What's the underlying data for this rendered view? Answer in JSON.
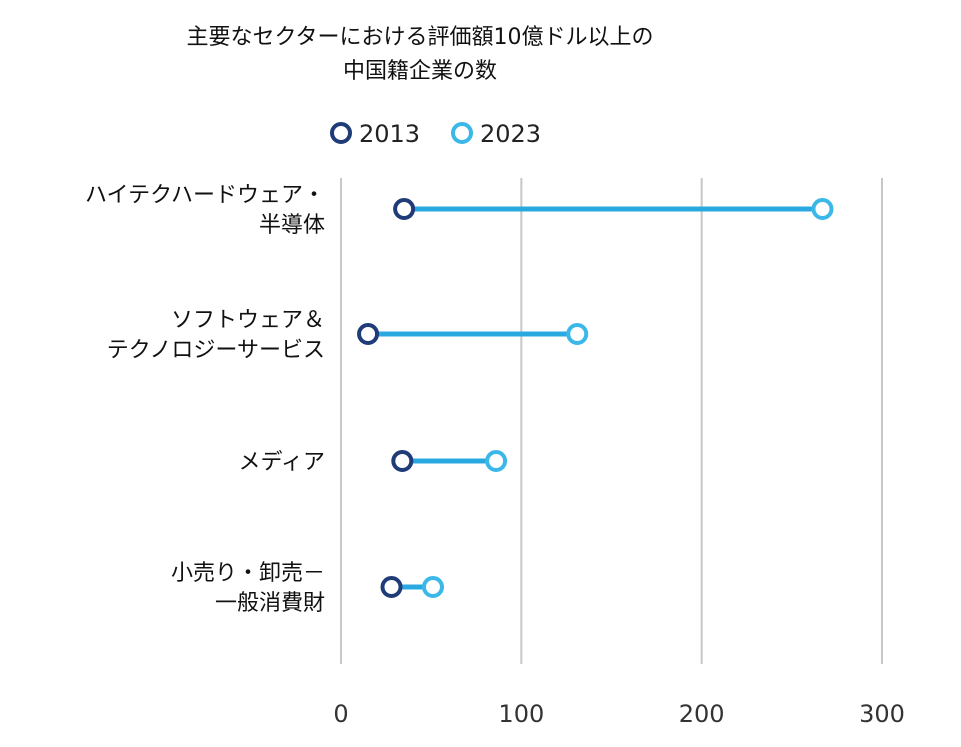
{
  "chart_data": {
    "type": "dumbbell",
    "title_lines": [
      "主要なセクターにおける評価額10億ドル以上の",
      "中国籍企業の数"
    ],
    "series": [
      {
        "name": "2013",
        "color": "#1f3b78"
      },
      {
        "name": "2023",
        "color": "#3bb8e8"
      }
    ],
    "categories": [
      {
        "label_lines": [
          "ハイテクハードウェア・",
          "半導体"
        ],
        "values": [
          35,
          267
        ]
      },
      {
        "label_lines": [
          "ソフトウェア＆",
          "テクノロジーサービス"
        ],
        "values": [
          15,
          131
        ]
      },
      {
        "label_lines": [
          "メディア"
        ],
        "values": [
          34,
          86
        ]
      },
      {
        "label_lines": [
          "小売り・卸売－",
          "一般消費財"
        ],
        "values": [
          28,
          51
        ]
      }
    ],
    "x_ticks": [
      "0",
      "100",
      "200",
      "300"
    ],
    "xlim": [
      0,
      300
    ],
    "grid": "vertical",
    "legend_position": "top",
    "connector_color": "#29a9e0",
    "grid_color": "#c8c8c8"
  }
}
